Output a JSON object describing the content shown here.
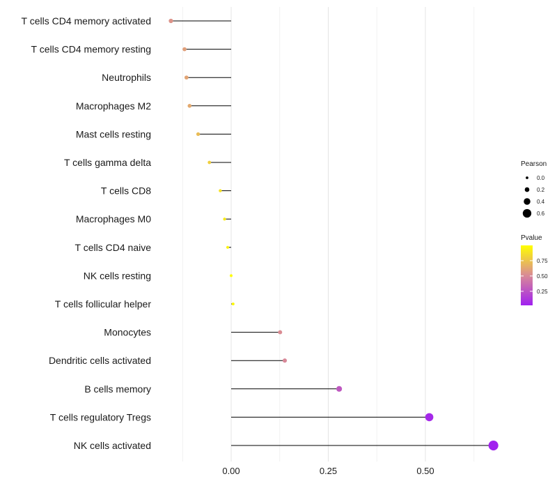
{
  "chart_data": {
    "type": "lollipop",
    "categories": [
      "T cells CD4 memory activated",
      "T cells CD4 memory resting",
      "Neutrophils",
      "Macrophages M2",
      "Mast cells resting",
      "T cells gamma delta",
      "T cells CD8",
      "Macrophages M0",
      "T cells CD4 naive",
      "NK cells resting",
      "T cells follicular helper",
      "Monocytes",
      "Dendritic cells activated",
      "B cells memory",
      "T cells regulatory  Tregs",
      "NK cells activated"
    ],
    "pearson": [
      -0.155,
      -0.12,
      -0.115,
      -0.107,
      -0.085,
      -0.056,
      -0.028,
      -0.017,
      -0.009,
      0.0,
      0.005,
      0.126,
      0.138,
      0.278,
      0.51,
      0.675
    ],
    "pvalue": [
      0.55,
      0.6,
      0.62,
      0.64,
      0.72,
      0.8,
      0.88,
      0.92,
      0.95,
      0.99,
      0.97,
      0.52,
      0.5,
      0.28,
      0.06,
      0.03
    ],
    "xlim": [
      -0.225,
      0.72
    ],
    "x_ticks": [
      0.0,
      0.25,
      0.5
    ],
    "x_tick_labels": [
      "0.00",
      "0.25",
      "0.50"
    ],
    "minor_gridlines": [
      -0.125,
      0.125,
      0.375,
      0.625
    ],
    "xlabel": "",
    "ylabel": "",
    "legend_size": {
      "title": "Pearson",
      "values": [
        0.0,
        0.2,
        0.4,
        0.6
      ],
      "labels": [
        "0.0",
        "0.2",
        "0.4",
        "0.6"
      ]
    },
    "legend_color": {
      "title": "Pvalue",
      "range": [
        0.02,
        1.0
      ],
      "ticks": [
        0.75,
        0.5,
        0.25
      ],
      "labels": [
        "0.75",
        "0.50",
        "0.25"
      ],
      "low_color": "#a020f0",
      "mid_color": "#d98a96",
      "high_color": "#ffff00"
    }
  }
}
